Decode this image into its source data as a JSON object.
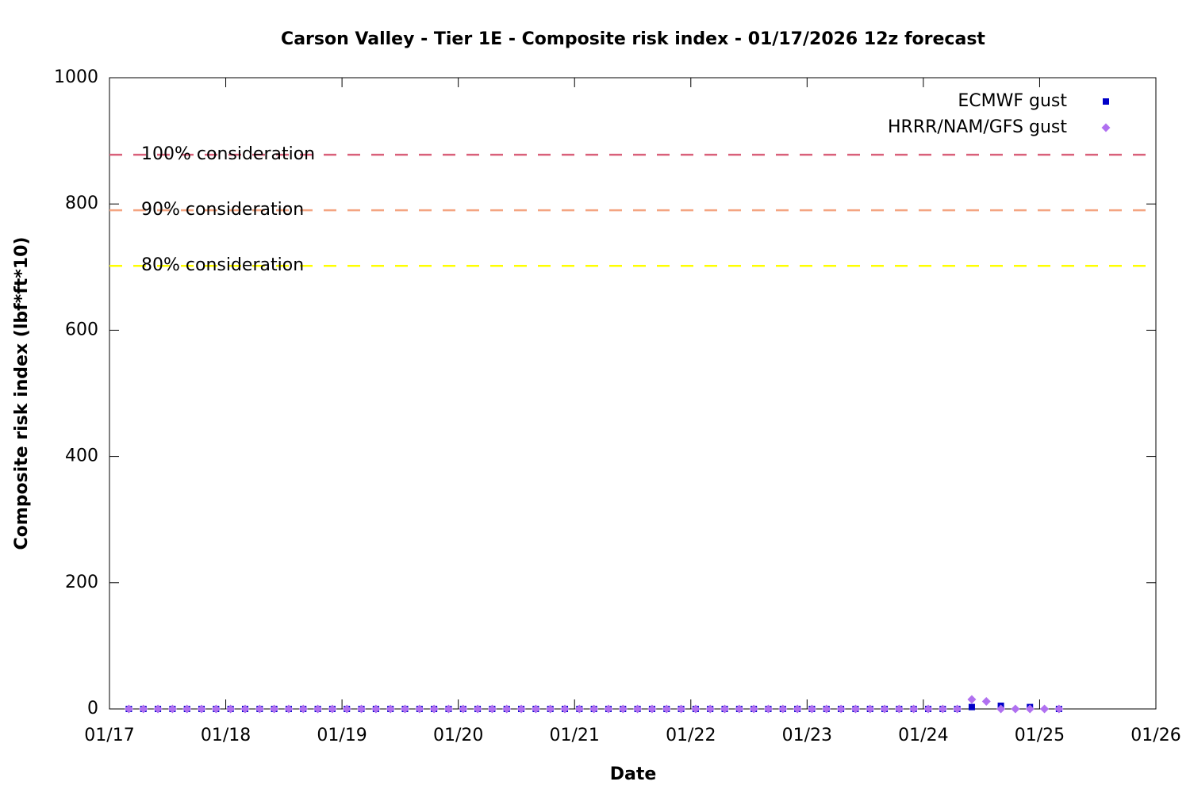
{
  "chart_data": {
    "type": "scatter",
    "title": "Carson Valley - Tier 1E - Composite risk index - 01/17/2026 12z forecast",
    "xlabel": "Date",
    "ylabel": "Composite risk index (lbf*ft*10)",
    "xlim": [
      0,
      216
    ],
    "xticks": [
      {
        "value": 0,
        "label": "01/17"
      },
      {
        "value": 24,
        "label": "01/18"
      },
      {
        "value": 48,
        "label": "01/19"
      },
      {
        "value": 72,
        "label": "01/20"
      },
      {
        "value": 96,
        "label": "01/21"
      },
      {
        "value": 120,
        "label": "01/22"
      },
      {
        "value": 144,
        "label": "01/23"
      },
      {
        "value": 168,
        "label": "01/24"
      },
      {
        "value": 192,
        "label": "01/25"
      },
      {
        "value": 216,
        "label": "01/26"
      }
    ],
    "ylim": [
      0,
      1000
    ],
    "yticks": [
      0,
      200,
      400,
      600,
      800,
      1000
    ],
    "legend": "upper right",
    "thresholds": [
      {
        "label": "100% consideration",
        "value": 878,
        "color": "#d9607a"
      },
      {
        "label": "90% consideration",
        "value": 790,
        "color": "#f4a582"
      },
      {
        "label": "80% consideration",
        "value": 702,
        "color": "#ffff00"
      }
    ],
    "series": [
      {
        "name": "ECMWF gust",
        "color": "#0000c8",
        "marker": "square",
        "x": [
          4,
          7,
          10,
          13,
          16,
          19,
          22,
          25,
          28,
          31,
          34,
          37,
          40,
          43,
          46,
          49,
          52,
          55,
          58,
          61,
          64,
          67,
          70,
          73,
          76,
          79,
          82,
          85,
          88,
          91,
          94,
          97,
          100,
          103,
          106,
          109,
          112,
          115,
          118,
          121,
          124,
          127,
          130,
          133,
          136,
          139,
          142,
          145,
          148,
          151,
          154,
          157,
          160,
          163,
          166,
          169,
          172,
          175,
          178,
          184,
          190,
          196
        ],
        "values": [
          0,
          0,
          0,
          0,
          0,
          0,
          0,
          0,
          0,
          0,
          0,
          0,
          0,
          0,
          0,
          0,
          0,
          0,
          0,
          0,
          0,
          0,
          0,
          0,
          0,
          0,
          0,
          0,
          0,
          0,
          0,
          0,
          0,
          0,
          0,
          0,
          0,
          0,
          0,
          0,
          0,
          0,
          0,
          0,
          0,
          0,
          0,
          0,
          0,
          0,
          0,
          0,
          0,
          0,
          0,
          0,
          0,
          0,
          3,
          5,
          3,
          0
        ]
      },
      {
        "name": "HRRR/NAM/GFS gust",
        "color": "#b070f0",
        "marker": "diamond",
        "x": [
          4,
          7,
          10,
          13,
          16,
          19,
          22,
          25,
          28,
          31,
          34,
          37,
          40,
          43,
          46,
          49,
          52,
          55,
          58,
          61,
          64,
          67,
          70,
          73,
          76,
          79,
          82,
          85,
          88,
          91,
          94,
          97,
          100,
          103,
          106,
          109,
          112,
          115,
          118,
          121,
          124,
          127,
          130,
          133,
          136,
          139,
          142,
          145,
          148,
          151,
          154,
          157,
          160,
          163,
          166,
          169,
          172,
          175,
          178,
          181,
          184,
          187,
          190,
          193,
          196
        ],
        "values": [
          0,
          0,
          0,
          0,
          0,
          0,
          0,
          0,
          0,
          0,
          0,
          0,
          0,
          0,
          0,
          0,
          0,
          0,
          0,
          0,
          0,
          0,
          0,
          0,
          0,
          0,
          0,
          0,
          0,
          0,
          0,
          0,
          0,
          0,
          0,
          0,
          0,
          0,
          0,
          0,
          0,
          0,
          0,
          0,
          0,
          0,
          0,
          0,
          0,
          0,
          0,
          0,
          0,
          0,
          0,
          0,
          0,
          0,
          15,
          12,
          0,
          0,
          0,
          0,
          0
        ]
      }
    ]
  }
}
